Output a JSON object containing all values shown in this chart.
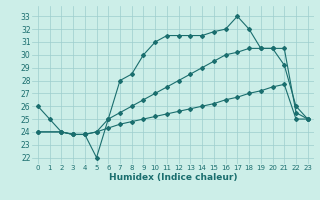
{
  "xlabel": "Humidex (Indice chaleur)",
  "bg_color": "#cceee8",
  "line_color": "#1a6e6e",
  "ylim": [
    21.5,
    33.8
  ],
  "xlim": [
    -0.5,
    23.5
  ],
  "yticks": [
    22,
    23,
    24,
    25,
    26,
    27,
    28,
    29,
    30,
    31,
    32,
    33
  ],
  "xticks": [
    0,
    1,
    2,
    3,
    4,
    5,
    6,
    7,
    8,
    9,
    10,
    11,
    12,
    13,
    14,
    15,
    16,
    17,
    18,
    19,
    20,
    21,
    22,
    23
  ],
  "series1_x": [
    0,
    1,
    2,
    3,
    4,
    5,
    6,
    7,
    8,
    9,
    10,
    11,
    12,
    13,
    14,
    15,
    16,
    17,
    18,
    19,
    20,
    21,
    22,
    23
  ],
  "series1_y": [
    26,
    25,
    24,
    23.8,
    23.8,
    22,
    25,
    28,
    28.5,
    30,
    31,
    31.5,
    31.5,
    31.5,
    31.5,
    31.8,
    32,
    33,
    32,
    30.5,
    30.5,
    29.2,
    26,
    25
  ],
  "series2_x": [
    0,
    2,
    3,
    4,
    5,
    6,
    7,
    8,
    9,
    10,
    11,
    12,
    13,
    14,
    15,
    16,
    17,
    18,
    19,
    20,
    21,
    22,
    23
  ],
  "series2_y": [
    24,
    24,
    23.8,
    23.8,
    24,
    24.3,
    24.6,
    24.8,
    25.0,
    25.2,
    25.4,
    25.6,
    25.8,
    26.0,
    26.2,
    26.5,
    26.7,
    27.0,
    27.2,
    27.5,
    27.7,
    25.0,
    25.0
  ],
  "series3_x": [
    0,
    2,
    3,
    4,
    5,
    6,
    7,
    8,
    9,
    10,
    11,
    12,
    13,
    14,
    15,
    16,
    17,
    18,
    19,
    20,
    21,
    22,
    23
  ],
  "series3_y": [
    24,
    24,
    23.8,
    23.8,
    24,
    25.0,
    25.5,
    26.0,
    26.5,
    27.0,
    27.5,
    28.0,
    28.5,
    29.0,
    29.5,
    30.0,
    30.2,
    30.5,
    30.5,
    30.5,
    30.5,
    25.5,
    25.0
  ]
}
